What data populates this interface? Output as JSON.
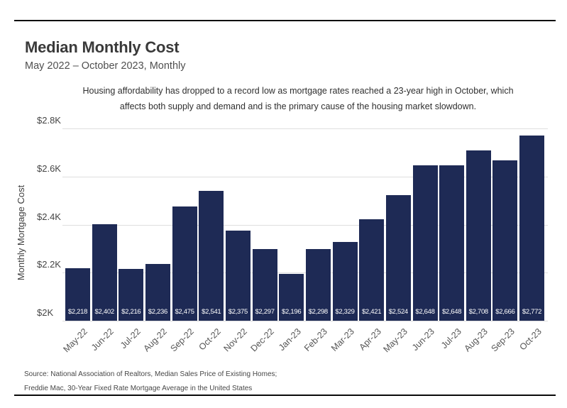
{
  "header": {
    "title": "Median Monthly Cost",
    "subtitle": "May 2022 – October 2023, Monthly"
  },
  "annotation": {
    "line1": "Housing affordability has dropped to a record low as mortgage rates reached a 23-year high in October, which",
    "line2": "affects both supply and demand and is the primary cause of the housing market slowdown."
  },
  "source": {
    "line1": "Source: National Association of Realtors, Median Sales Price of Existing Homes;",
    "line2": "Freddie Mac, 30-Year Fixed Rate Mortgage Average in the United States"
  },
  "colors": {
    "bar": "#1e2a55",
    "gridline": "#dedede",
    "divider": "#0a0a0a",
    "bar_value_text": "#ffffff"
  },
  "chart_data": {
    "type": "bar",
    "title": "Median Monthly Cost",
    "subtitle": "May 2022 – October 2023, Monthly",
    "xlabel": "",
    "ylabel": "Monthly Mortgage Cost",
    "ylim": [
      2000,
      2800
    ],
    "grid": true,
    "legend": "none",
    "bar_color": "#1e2a55",
    "categories": [
      "May-22",
      "Jun-22",
      "Jul-22",
      "Aug-22",
      "Sep-22",
      "Oct-22",
      "Nov-22",
      "Dec-22",
      "Jan-23",
      "Feb-23",
      "Mar-23",
      "Apr-23",
      "May-23",
      "Jun-23",
      "Jul-23",
      "Aug-23",
      "Sep-23",
      "Oct-23"
    ],
    "values": [
      2218,
      2402,
      2216,
      2236,
      2475,
      2541,
      2375,
      2297,
      2196,
      2298,
      2329,
      2421,
      2524,
      2648,
      2648,
      2708,
      2666,
      2772
    ],
    "bar_value_labels": [
      "$2,218",
      "$2,402",
      "$2,216",
      "$2,236",
      "$2,475",
      "$2,541",
      "$2,375",
      "$2,297",
      "$2,196",
      "$2,298",
      "$2,329",
      "$2,421",
      "$2,524",
      "$2,648",
      "$2,648",
      "$2,708",
      "$2,666",
      "$2,772"
    ],
    "yticks": {
      "values": [
        2000,
        2200,
        2400,
        2600,
        2800
      ],
      "labels": [
        "$2K",
        "$2.2K",
        "$2.4K",
        "$2.6K",
        "$2.8K"
      ]
    }
  }
}
